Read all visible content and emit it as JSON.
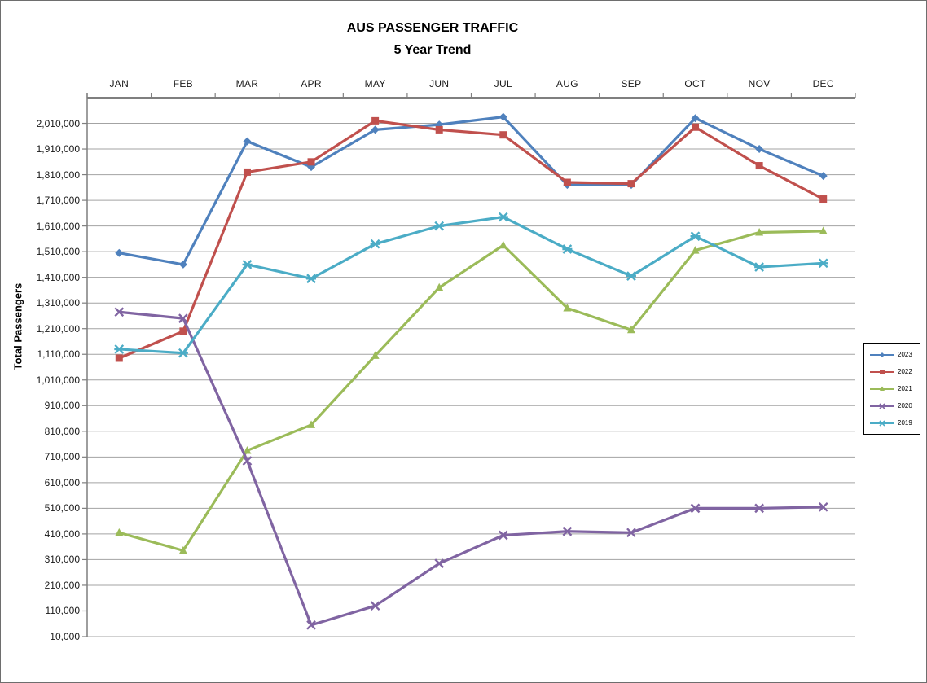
{
  "chart": {
    "title_line1": "AUS PASSENGER TRAFFIC",
    "title_line2": "5 Year Trend",
    "y_axis_title": "Total Passengers"
  },
  "chart_data": {
    "type": "line",
    "title": "AUS PASSENGER TRAFFIC - 5 Year Trend",
    "xlabel": "",
    "ylabel": "Total Passengers",
    "categories": [
      "JAN",
      "FEB",
      "MAR",
      "APR",
      "MAY",
      "JUN",
      "JUL",
      "AUG",
      "SEP",
      "OCT",
      "NOV",
      "DEC"
    ],
    "series": [
      {
        "name": "2023",
        "color": "#4F81BD",
        "marker": "diamond",
        "values": [
          1505000,
          1460000,
          1940000,
          1840000,
          1985000,
          2005000,
          2035000,
          1770000,
          1770000,
          2030000,
          1910000,
          1805000
        ]
      },
      {
        "name": "2022",
        "color": "#C0504D",
        "marker": "square",
        "values": [
          1095000,
          1200000,
          1820000,
          1860000,
          2020000,
          1985000,
          1965000,
          1780000,
          1775000,
          1995000,
          1845000,
          1715000
        ]
      },
      {
        "name": "2021",
        "color": "#9BBB59",
        "marker": "triangle",
        "values": [
          415000,
          345000,
          735000,
          835000,
          1105000,
          1370000,
          1535000,
          1290000,
          1205000,
          1515000,
          1585000,
          1590000
        ]
      },
      {
        "name": "2020",
        "color": "#8064A2",
        "marker": "x",
        "values": [
          1275000,
          1250000,
          695000,
          55000,
          130000,
          295000,
          405000,
          420000,
          415000,
          510000,
          510000,
          515000
        ]
      },
      {
        "name": "2019",
        "color": "#4BACC6",
        "marker": "star",
        "values": [
          1130000,
          1115000,
          1460000,
          1405000,
          1540000,
          1610000,
          1645000,
          1520000,
          1415000,
          1570000,
          1450000,
          1465000
        ]
      }
    ],
    "ylim": [
      10000,
      2110000
    ],
    "y_tick_step": 100000,
    "y_tick_labels": [
      "10,000",
      "110,000",
      "210,000",
      "310,000",
      "410,000",
      "510,000",
      "610,000",
      "710,000",
      "810,000",
      "910,000",
      "1,010,000",
      "1,110,000",
      "1,210,000",
      "1,310,000",
      "1,410,000",
      "1,510,000",
      "1,610,000",
      "1,710,000",
      "1,810,000",
      "1,910,000",
      "2,010,000"
    ],
    "grid": true,
    "legend_position": "right",
    "legend_entries": [
      "2023",
      "2022",
      "2021",
      "2020",
      "2019"
    ],
    "colors": {
      "gridline": "#A3A3A3",
      "axis": "#7F7F7F",
      "text": "#000000",
      "background": "#FFFFFF"
    }
  }
}
